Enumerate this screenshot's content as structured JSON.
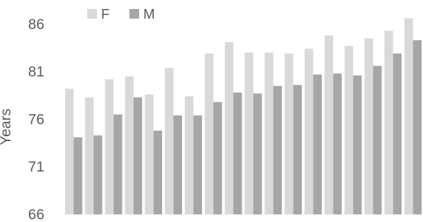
{
  "chart_data": {
    "type": "bar",
    "title": "",
    "xlabel": "",
    "ylabel": "Years",
    "ylim": [
      66,
      87
    ],
    "yticks": [
      66,
      71,
      76,
      81,
      86
    ],
    "grid": false,
    "legend": {
      "position": "top-left"
    },
    "categories": [
      "",
      "",
      "",
      "",
      "",
      "",
      "",
      "",
      "",
      "",
      "",
      "",
      "",
      "",
      "",
      "",
      "",
      ""
    ],
    "series": [
      {
        "name": "F",
        "color": "#d9d9d9",
        "values": [
          79.2,
          78.3,
          80.2,
          80.5,
          78.6,
          81.4,
          78.4,
          82.9,
          84.1,
          83.0,
          83.0,
          82.9,
          83.4,
          84.8,
          83.7,
          84.5,
          85.3,
          86.6
        ]
      },
      {
        "name": "M",
        "color": "#a6a6a6",
        "values": [
          74.1,
          74.3,
          76.5,
          78.3,
          74.8,
          76.4,
          76.4,
          77.8,
          78.8,
          78.7,
          79.5,
          79.6,
          80.7,
          80.8,
          80.6,
          81.6,
          82.9,
          84.3
        ]
      }
    ]
  }
}
